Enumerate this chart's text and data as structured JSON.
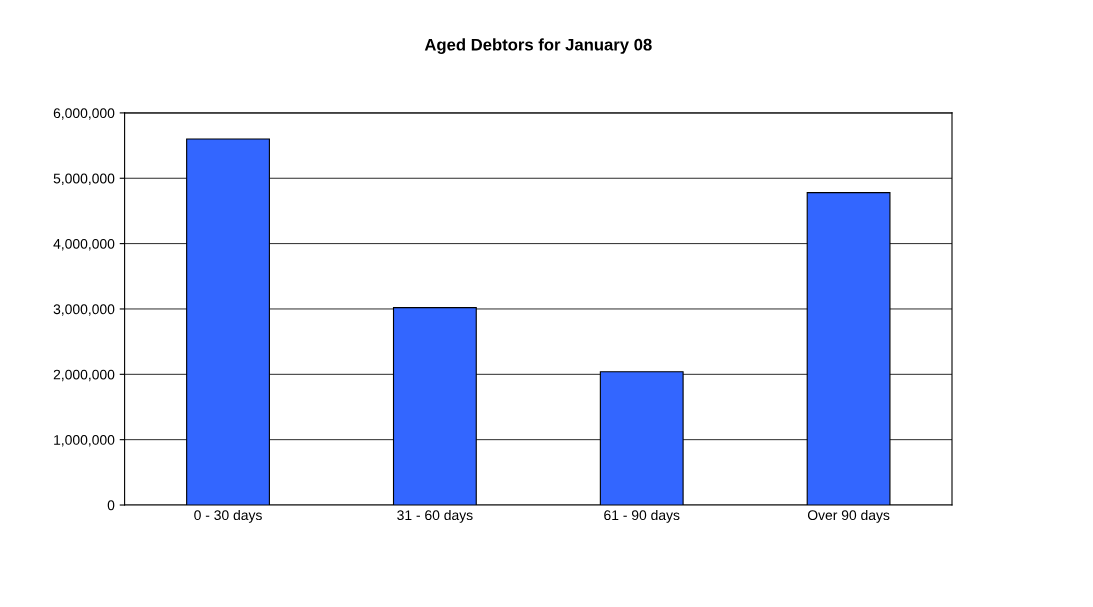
{
  "chart_data": {
    "type": "bar",
    "title": "Aged Debtors for January 08",
    "categories": [
      "0 - 30 days",
      "31 - 60 days",
      "61 - 90 days",
      "Over 90 days"
    ],
    "values": [
      5600000,
      3020000,
      2040000,
      4780000
    ],
    "color": "#3366ff",
    "ylim": [
      0,
      6000000
    ],
    "yticks": [
      {
        "value": 0,
        "label": "0"
      },
      {
        "value": 1000000,
        "label": "1,000,000"
      },
      {
        "value": 2000000,
        "label": "2,000,000"
      },
      {
        "value": 3000000,
        "label": "3,000,000"
      },
      {
        "value": 4000000,
        "label": "4,000,000"
      },
      {
        "value": 5000000,
        "label": "5,000,000"
      },
      {
        "value": 6000000,
        "label": "6,000,000"
      }
    ],
    "grid": "y"
  }
}
